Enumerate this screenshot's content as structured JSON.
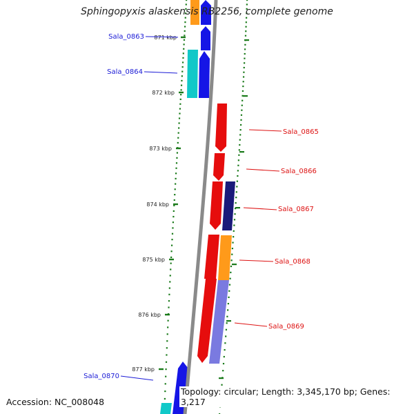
{
  "title": "Sphingopyxis alaskensis RB2256, complete genome",
  "accession": "Accession: NC_008048",
  "topology": "Topology: circular; Length: 3,345,170 bp; Genes: 3,217",
  "colors": {
    "axis": "#8a8a8a",
    "tick": "#1a7a1a",
    "forward_label": "#1a1ad6",
    "reverse_label": "#dd1111",
    "blue": "#1515e6",
    "cyan": "#11c8c8",
    "orange": "#ff9a1a",
    "red": "#e60d0d",
    "navy": "#1a1a7a",
    "lavender": "#7a7ae0"
  },
  "ticks": [
    "871 kbp",
    "872 kbp",
    "873 kbp",
    "874 kbp",
    "875 kbp",
    "876 kbp",
    "877 kbp"
  ],
  "gene_labels": [
    {
      "text": "Sala_0863",
      "strand": "forward"
    },
    {
      "text": "Sala_0864",
      "strand": "forward"
    },
    {
      "text": "Sala_0865",
      "strand": "reverse"
    },
    {
      "text": "Sala_0866",
      "strand": "reverse"
    },
    {
      "text": "Sala_0867",
      "strand": "reverse"
    },
    {
      "text": "Sala_0868",
      "strand": "reverse"
    },
    {
      "text": "Sala_0869",
      "strand": "reverse"
    },
    {
      "text": "Sala_0870",
      "strand": "forward"
    }
  ]
}
